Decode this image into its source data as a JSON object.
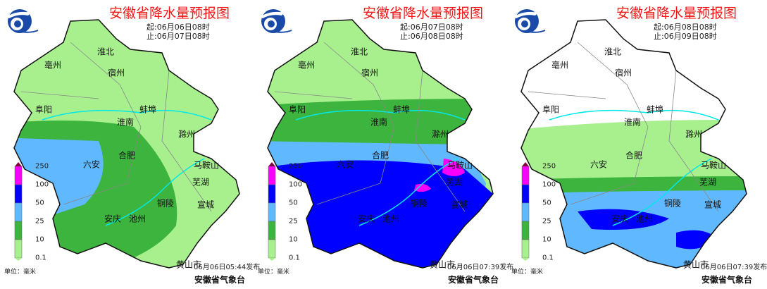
{
  "colors": {
    "c0_1": "#a8f08e",
    "c10": "#3db43d",
    "c25": "#60b8ff",
    "c50": "#0000fe",
    "c100": "#fa00fa",
    "c250": "#800040",
    "river": "#00e8e8",
    "boundary": "#888888"
  },
  "legend": {
    "labels": [
      "250",
      "100",
      "50",
      "25",
      "10",
      "0.1"
    ],
    "unit": "单位：毫米"
  },
  "cities": [
    "淮北",
    "亳州",
    "宿州",
    "阜阳",
    "蚌埠",
    "淮南",
    "滁州",
    "合肥",
    "六安",
    "马鞍山",
    "芜湖",
    "铜陵",
    "宣城",
    "安庆",
    "池州",
    "黄山市"
  ],
  "panels": [
    {
      "title": "安徽省降水量预报图",
      "start": "起:06月06日08时",
      "end": "止:06月07日08时",
      "issued": "06月06日05:44发布",
      "org": "安徽省气象台"
    },
    {
      "title": "安徽省降水量预报图",
      "start": "起:06月07日08时",
      "end": "止:06月08日08时",
      "issued": "06月06日07:39发布",
      "org": "安徽省气象台"
    },
    {
      "title": "安徽省降水量预报图",
      "start": "起:06月08日08时",
      "end": "止:06月09日08时",
      "issued": "06月06日07:39发布",
      "org": "安徽省气象台"
    }
  ]
}
